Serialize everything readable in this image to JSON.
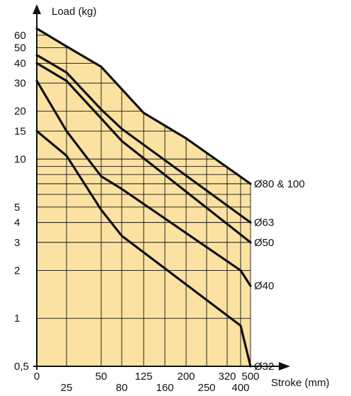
{
  "chart_data": {
    "type": "line",
    "xlabel": "Stroke (mm)",
    "ylabel": "Load (kg)",
    "x_scale": "stroke",
    "y_scale": "log",
    "xlim": [
      0,
      500
    ],
    "ylim": [
      0.5,
      70
    ],
    "grid": true,
    "colors": {
      "fill": "#fce2a2",
      "grid": "#111111",
      "line": "#111111",
      "axis": "#111111"
    },
    "x_ticks": [
      {
        "value": 0,
        "label": "0",
        "row": "top"
      },
      {
        "value": 25,
        "label": "25",
        "row": "bottom"
      },
      {
        "value": 50,
        "label": "50",
        "row": "top"
      },
      {
        "value": 80,
        "label": "80",
        "row": "bottom"
      },
      {
        "value": 125,
        "label": "125",
        "row": "top"
      },
      {
        "value": 160,
        "label": "160",
        "row": "bottom"
      },
      {
        "value": 200,
        "label": "200",
        "row": "top"
      },
      {
        "value": 250,
        "label": "250",
        "row": "bottom"
      },
      {
        "value": 320,
        "label": "320",
        "row": "top"
      },
      {
        "value": 400,
        "label": "400",
        "row": "bottom"
      },
      {
        "value": 500,
        "label": "500",
        "row": "top"
      }
    ],
    "y_ticks": [
      {
        "value": 0.5,
        "label": "0,5"
      },
      {
        "value": 1,
        "label": "1"
      },
      {
        "value": 2,
        "label": "2"
      },
      {
        "value": 3,
        "label": "3"
      },
      {
        "value": 4,
        "label": "4"
      },
      {
        "value": 5,
        "label": "5"
      },
      {
        "value": 10,
        "label": "10"
      },
      {
        "value": 15,
        "label": "15"
      },
      {
        "value": 20,
        "label": "20"
      },
      {
        "value": 30,
        "label": "30"
      },
      {
        "value": 40,
        "label": "40"
      },
      {
        "value": 50,
        "label": "50"
      },
      {
        "value": 60,
        "label": "60"
      }
    ],
    "y_grid": [
      0.5,
      1,
      2,
      3,
      4,
      5,
      6,
      7,
      8,
      9,
      10,
      15,
      20,
      30,
      40,
      50,
      60
    ],
    "x_grid": [
      25,
      50,
      80,
      125,
      160,
      200,
      250,
      320,
      400,
      500
    ],
    "series": [
      {
        "name": "Ø80 & 100",
        "x": [
          0,
          25,
          50,
          125,
          200,
          500
        ],
        "y": [
          66,
          51,
          38,
          19.5,
          13.5,
          7
        ]
      },
      {
        "name": "Ø63",
        "x": [
          0,
          25,
          50,
          80,
          500
        ],
        "y": [
          45,
          35,
          20.5,
          15.5,
          4
        ]
      },
      {
        "name": "Ø50",
        "x": [
          0,
          25,
          50,
          80,
          500
        ],
        "y": [
          40,
          31,
          18,
          13,
          3
        ]
      },
      {
        "name": "Ø40",
        "x": [
          0,
          25,
          50,
          80,
          400,
          500
        ],
        "y": [
          31,
          15,
          7.8,
          6.5,
          2,
          1.6
        ]
      },
      {
        "name": "Ø32",
        "x": [
          0,
          25,
          50,
          80,
          400,
          500
        ],
        "y": [
          15,
          10.5,
          4.8,
          3.3,
          0.9,
          0.5
        ]
      }
    ]
  }
}
